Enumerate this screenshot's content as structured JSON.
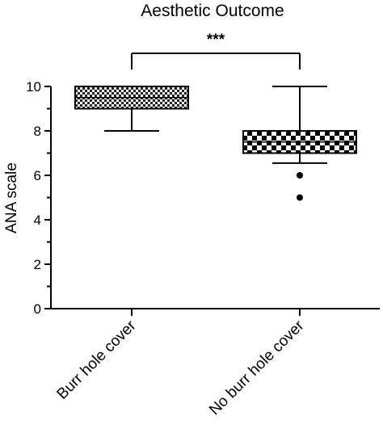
{
  "chart_data": {
    "type": "box",
    "title": "Aesthetic Outcome",
    "xlabel": "",
    "ylabel": "ANA scale",
    "ylim": [
      0,
      10
    ],
    "yticks": [
      "0",
      "2",
      "4",
      "6",
      "8",
      "10"
    ],
    "grid": false,
    "categories": [
      "Burr hole cover",
      "No burr hole cover"
    ],
    "boxes": [
      {
        "category": "Burr hole cover",
        "whisker_low": 8,
        "q1": 9,
        "median": 9.5,
        "q3": 10,
        "whisker_high": 10,
        "outliers": [],
        "fill": "checkered-fine"
      },
      {
        "category": "No burr hole cover",
        "whisker_low": 6.55,
        "q1": 7,
        "median": 7.5,
        "q3": 8,
        "whisker_high": 10,
        "outliers": [
          6,
          5
        ],
        "fill": "checkered-coarse"
      }
    ],
    "significance": {
      "label": "***",
      "between": [
        "Burr hole cover",
        "No burr hole cover"
      ]
    }
  }
}
